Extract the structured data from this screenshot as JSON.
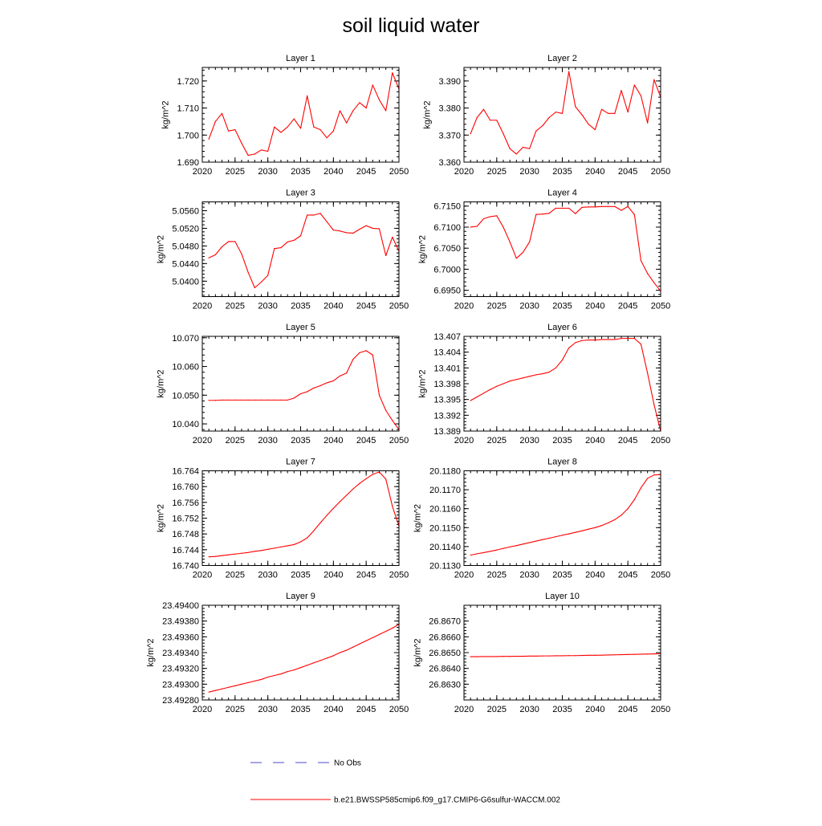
{
  "title": "soil liquid water",
  "colors": {
    "model": "#ff0000",
    "obs": "#4a4ad0",
    "axis": "#000000"
  },
  "legend": {
    "obs_label": "No Obs",
    "model_label": "b.e21.BWSSP585cmip6.f09_g17.CMIP6-G6sulfur-WACCM.002"
  },
  "chart_data": [
    {
      "type": "line",
      "title": "Layer 1",
      "xlabel": "",
      "ylabel": "kg/m^2",
      "xlim": [
        2020,
        2050
      ],
      "ylim": [
        1.69,
        1.725
      ],
      "xticks": [
        2020,
        2025,
        2030,
        2035,
        2040,
        2045,
        2050
      ],
      "yticks": [
        1.69,
        1.7,
        1.71,
        1.72
      ],
      "ytick_labels": [
        "1.690",
        "1.700",
        "1.710",
        "1.720"
      ],
      "x": [
        2021,
        2022,
        2023,
        2024,
        2025,
        2026,
        2027,
        2028,
        2029,
        2030,
        2031,
        2032,
        2033,
        2034,
        2035,
        2036,
        2037,
        2038,
        2039,
        2040,
        2041,
        2042,
        2043,
        2044,
        2045,
        2046,
        2047,
        2048,
        2049,
        2050
      ],
      "series": [
        {
          "values": [
            1.6985,
            1.705,
            1.708,
            1.7015,
            1.702,
            1.697,
            1.6925,
            1.693,
            1.6945,
            1.694,
            1.703,
            1.701,
            1.703,
            1.706,
            1.7025,
            1.7145,
            1.703,
            1.702,
            1.699,
            1.7015,
            1.709,
            1.7045,
            1.709,
            1.712,
            1.71,
            1.7185,
            1.713,
            1.709,
            1.723,
            1.717
          ]
        }
      ]
    },
    {
      "type": "line",
      "title": "Layer 2",
      "xlabel": "",
      "ylabel": "kg/m^2",
      "xlim": [
        2020,
        2050
      ],
      "ylim": [
        3.36,
        3.395
      ],
      "xticks": [
        2020,
        2025,
        2030,
        2035,
        2040,
        2045,
        2050
      ],
      "yticks": [
        3.36,
        3.37,
        3.38,
        3.39
      ],
      "ytick_labels": [
        "3.360",
        "3.370",
        "3.380",
        "3.390"
      ],
      "x": [
        2021,
        2022,
        2023,
        2024,
        2025,
        2026,
        2027,
        2028,
        2029,
        2030,
        2031,
        2032,
        2033,
        2034,
        2035,
        2036,
        2037,
        2038,
        2039,
        2040,
        2041,
        2042,
        2043,
        2044,
        2045,
        2046,
        2047,
        2048,
        2049,
        2050
      ],
      "series": [
        {
          "values": [
            3.3705,
            3.3765,
            3.3795,
            3.3755,
            3.3755,
            3.3705,
            3.365,
            3.363,
            3.3655,
            3.365,
            3.3715,
            3.3735,
            3.3765,
            3.3785,
            3.378,
            3.3935,
            3.3805,
            3.3775,
            3.374,
            3.372,
            3.3795,
            3.378,
            3.378,
            3.3865,
            3.3785,
            3.3885,
            3.3845,
            3.3745,
            3.3905,
            3.384
          ]
        }
      ]
    },
    {
      "type": "line",
      "title": "Layer 3",
      "xlabel": "",
      "ylabel": "kg/m^2",
      "xlim": [
        2020,
        2050
      ],
      "ylim": [
        5.0365,
        5.058
      ],
      "xticks": [
        2020,
        2025,
        2030,
        2035,
        2040,
        2045,
        2050
      ],
      "yticks": [
        5.04,
        5.044,
        5.048,
        5.052,
        5.056
      ],
      "ytick_labels": [
        "5.0400",
        "5.0440",
        "5.0480",
        "5.0520",
        "5.0560"
      ],
      "x": [
        2021,
        2022,
        2023,
        2024,
        2025,
        2026,
        2027,
        2028,
        2029,
        2030,
        2031,
        2032,
        2033,
        2034,
        2035,
        2036,
        2037,
        2038,
        2039,
        2040,
        2041,
        2042,
        2043,
        2044,
        2045,
        2046,
        2047,
        2048,
        2049,
        2050
      ],
      "series": [
        {
          "values": [
            5.0453,
            5.046,
            5.0478,
            5.049,
            5.049,
            5.0462,
            5.042,
            5.0385,
            5.0398,
            5.0413,
            5.0474,
            5.0476,
            5.0489,
            5.0493,
            5.0503,
            5.055,
            5.055,
            5.0554,
            5.0535,
            5.0516,
            5.0514,
            5.051,
            5.0509,
            5.0518,
            5.0526,
            5.052,
            5.0519,
            5.0458,
            5.05,
            5.0468
          ]
        }
      ]
    },
    {
      "type": "line",
      "title": "Layer 4",
      "xlabel": "",
      "ylabel": "kg/m^2",
      "xlim": [
        2020,
        2050
      ],
      "ylim": [
        6.6935,
        6.716
      ],
      "xticks": [
        2020,
        2025,
        2030,
        2035,
        2040,
        2045,
        2050
      ],
      "yticks": [
        6.695,
        6.7,
        6.705,
        6.71,
        6.715
      ],
      "ytick_labels": [
        "6.6950",
        "6.7000",
        "6.7050",
        "6.7100",
        "6.7150"
      ],
      "x": [
        2021,
        2022,
        2023,
        2024,
        2025,
        2026,
        2027,
        2028,
        2029,
        2030,
        2031,
        2032,
        2033,
        2034,
        2035,
        2036,
        2037,
        2038,
        2039,
        2040,
        2041,
        2042,
        2043,
        2044,
        2045,
        2046,
        2047,
        2048,
        2049,
        2050
      ],
      "series": [
        {
          "values": [
            6.71,
            6.7102,
            6.712,
            6.7125,
            6.7127,
            6.71,
            6.7065,
            6.7026,
            6.704,
            6.7065,
            6.713,
            6.7131,
            6.7133,
            6.7145,
            6.7145,
            6.7145,
            6.7132,
            6.7147,
            6.7148,
            6.7148,
            6.7149,
            6.7149,
            6.7149,
            6.714,
            6.7149,
            6.713,
            6.702,
            6.699,
            6.6968,
            6.6948
          ]
        }
      ]
    },
    {
      "type": "line",
      "title": "Layer 5",
      "xlabel": "",
      "ylabel": "kg/m^2",
      "xlim": [
        2020,
        2050
      ],
      "ylim": [
        10.0375,
        10.0705
      ],
      "xticks": [
        2020,
        2025,
        2030,
        2035,
        2040,
        2045,
        2050
      ],
      "yticks": [
        10.04,
        10.05,
        10.06,
        10.07
      ],
      "ytick_labels": [
        "10.040",
        "10.050",
        "10.060",
        "10.070"
      ],
      "x": [
        2021,
        2022,
        2023,
        2024,
        2025,
        2026,
        2027,
        2028,
        2029,
        2030,
        2031,
        2032,
        2033,
        2034,
        2035,
        2036,
        2037,
        2038,
        2039,
        2040,
        2041,
        2042,
        2043,
        2044,
        2045,
        2046,
        2047,
        2048,
        2049,
        2050
      ],
      "series": [
        {
          "values": [
            10.0482,
            10.0482,
            10.0483,
            10.0483,
            10.0483,
            10.0483,
            10.0483,
            10.0483,
            10.0483,
            10.0483,
            10.0483,
            10.0483,
            10.0483,
            10.049,
            10.0505,
            10.0512,
            10.0525,
            10.0533,
            10.0543,
            10.055,
            10.0567,
            10.0577,
            10.0625,
            10.0648,
            10.0655,
            10.064,
            10.05,
            10.0447,
            10.0412,
            10.038
          ]
        }
      ]
    },
    {
      "type": "line",
      "title": "Layer 6",
      "xlabel": "",
      "ylabel": "kg/m^2",
      "xlim": [
        2020,
        2050
      ],
      "ylim": [
        13.389,
        13.407
      ],
      "xticks": [
        2020,
        2025,
        2030,
        2035,
        2040,
        2045,
        2050
      ],
      "yticks": [
        13.389,
        13.392,
        13.395,
        13.398,
        13.401,
        13.404,
        13.407
      ],
      "ytick_labels": [
        "13.389",
        "13.392",
        "13.395",
        "13.398",
        "13.401",
        "13.404",
        "13.407"
      ],
      "x": [
        2021,
        2022,
        2023,
        2024,
        2025,
        2026,
        2027,
        2028,
        2029,
        2030,
        2031,
        2032,
        2033,
        2034,
        2035,
        2036,
        2037,
        2038,
        2039,
        2040,
        2041,
        2042,
        2043,
        2044,
        2045,
        2046,
        2047,
        2048,
        2049,
        2050
      ],
      "series": [
        {
          "values": [
            13.3948,
            13.3955,
            13.3962,
            13.3969,
            13.3975,
            13.398,
            13.3985,
            13.3988,
            13.3991,
            13.3994,
            13.3997,
            13.3999,
            13.4002,
            13.401,
            13.4025,
            13.4048,
            13.4058,
            13.4062,
            13.4063,
            13.4063,
            13.4064,
            13.4064,
            13.4064,
            13.4066,
            13.4066,
            13.4066,
            13.4055,
            13.4,
            13.394,
            13.389
          ]
        }
      ]
    },
    {
      "type": "line",
      "title": "Layer 7",
      "xlabel": "",
      "ylabel": "kg/m^2",
      "xlim": [
        2020,
        2050
      ],
      "ylim": [
        16.74,
        16.764
      ],
      "xticks": [
        2020,
        2025,
        2030,
        2035,
        2040,
        2045,
        2050
      ],
      "yticks": [
        16.74,
        16.744,
        16.748,
        16.752,
        16.756,
        16.76,
        16.764
      ],
      "ytick_labels": [
        "16.740",
        "16.744",
        "16.748",
        "16.752",
        "16.756",
        "16.760",
        "16.764"
      ],
      "x": [
        2021,
        2022,
        2023,
        2024,
        2025,
        2026,
        2027,
        2028,
        2029,
        2030,
        2031,
        2032,
        2033,
        2034,
        2035,
        2036,
        2037,
        2038,
        2039,
        2040,
        2041,
        2042,
        2043,
        2044,
        2045,
        2046,
        2047,
        2048,
        2049,
        2050
      ],
      "series": [
        {
          "values": [
            16.7422,
            16.7423,
            16.7425,
            16.7427,
            16.7429,
            16.7431,
            16.7433,
            16.7436,
            16.7438,
            16.7441,
            16.7444,
            16.7447,
            16.745,
            16.7453,
            16.746,
            16.747,
            16.7488,
            16.7508,
            16.7527,
            16.7545,
            16.7562,
            16.7578,
            16.7594,
            16.7608,
            16.762,
            16.7631,
            16.7637,
            16.7619,
            16.755,
            16.75
          ]
        }
      ]
    },
    {
      "type": "line",
      "title": "Layer 8",
      "xlabel": "",
      "ylabel": "kg/m^2",
      "xlim": [
        2020,
        2050
      ],
      "ylim": [
        20.113,
        20.118
      ],
      "xticks": [
        2020,
        2025,
        2030,
        2035,
        2040,
        2045,
        2050
      ],
      "yticks": [
        20.113,
        20.114,
        20.115,
        20.116,
        20.117,
        20.118
      ],
      "ytick_labels": [
        "20.1130",
        "20.1140",
        "20.1150",
        "20.1160",
        "20.1170",
        "20.1180"
      ],
      "x": [
        2021,
        2022,
        2023,
        2024,
        2025,
        2026,
        2027,
        2028,
        2029,
        2030,
        2031,
        2032,
        2033,
        2034,
        2035,
        2036,
        2037,
        2038,
        2039,
        2040,
        2041,
        2042,
        2043,
        2044,
        2045,
        2046,
        2047,
        2048,
        2049,
        2050
      ],
      "series": [
        {
          "values": [
            20.11355,
            20.11362,
            20.11368,
            20.11375,
            20.11382,
            20.1139,
            20.11398,
            20.11405,
            20.11413,
            20.11421,
            20.11429,
            20.11437,
            20.11444,
            20.11452,
            20.1146,
            20.11467,
            20.11475,
            20.11483,
            20.11492,
            20.115,
            20.11511,
            20.11525,
            20.11542,
            20.11566,
            20.116,
            20.11648,
            20.1171,
            20.1176,
            20.11778,
            20.1178
          ]
        }
      ]
    },
    {
      "type": "line",
      "title": "Layer 9",
      "xlabel": "",
      "ylabel": "kg/m^2",
      "xlim": [
        2020,
        2050
      ],
      "ylim": [
        23.4928,
        23.494
      ],
      "xticks": [
        2020,
        2025,
        2030,
        2035,
        2040,
        2045,
        2050
      ],
      "yticks": [
        23.4928,
        23.493,
        23.4932,
        23.4934,
        23.4936,
        23.4938,
        23.494
      ],
      "ytick_labels": [
        "23.49280",
        "23.49300",
        "23.49320",
        "23.49340",
        "23.49360",
        "23.49380",
        "23.49400"
      ],
      "x": [
        2021,
        2022,
        2023,
        2024,
        2025,
        2026,
        2027,
        2028,
        2029,
        2030,
        2031,
        2032,
        2033,
        2034,
        2035,
        2036,
        2037,
        2038,
        2039,
        2040,
        2041,
        2042,
        2043,
        2044,
        2045,
        2046,
        2047,
        2048,
        2049,
        2050
      ],
      "series": [
        {
          "values": [
            23.4929,
            23.49292,
            23.49294,
            23.49296,
            23.49298,
            23.493,
            23.49302,
            23.49304,
            23.49306,
            23.49309,
            23.49311,
            23.49313,
            23.49316,
            23.49318,
            23.49321,
            23.49324,
            23.49327,
            23.4933,
            23.49333,
            23.49336,
            23.4934,
            23.49343,
            23.49347,
            23.49351,
            23.49355,
            23.49359,
            23.49363,
            23.49367,
            23.49371,
            23.49376
          ]
        }
      ]
    },
    {
      "type": "line",
      "title": "Layer 10",
      "xlabel": "",
      "ylabel": "kg/m^2",
      "xlim": [
        2020,
        2050
      ],
      "ylim": [
        26.862,
        26.868
      ],
      "xticks": [
        2020,
        2025,
        2030,
        2035,
        2040,
        2045,
        2050
      ],
      "yticks": [
        26.863,
        26.864,
        26.865,
        26.866,
        26.867
      ],
      "ytick_labels": [
        "26.8630",
        "26.8640",
        "26.8650",
        "26.8660",
        "26.8670"
      ],
      "x": [
        2021,
        2022,
        2023,
        2024,
        2025,
        2026,
        2027,
        2028,
        2029,
        2030,
        2031,
        2032,
        2033,
        2034,
        2035,
        2036,
        2037,
        2038,
        2039,
        2040,
        2041,
        2042,
        2043,
        2044,
        2045,
        2046,
        2047,
        2048,
        2049,
        2050
      ],
      "series": [
        {
          "values": [
            26.86474,
            26.86474,
            26.86475,
            26.86475,
            26.86475,
            26.86476,
            26.86476,
            26.86477,
            26.86477,
            26.86478,
            26.86478,
            26.86479,
            26.86479,
            26.8648,
            26.8648,
            26.86481,
            26.86481,
            26.86482,
            26.86483,
            26.86483,
            26.86484,
            26.86485,
            26.86486,
            26.86487,
            26.86488,
            26.86489,
            26.8649,
            26.86491,
            26.86492,
            26.86493
          ]
        }
      ]
    }
  ]
}
